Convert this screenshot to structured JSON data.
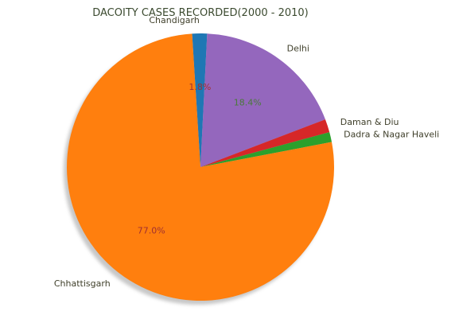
{
  "chart_data": {
    "type": "pie",
    "title": "DACOITY CASES RECORDED(2000 - 2010)",
    "slices": [
      {
        "label": "Chandigarh",
        "value": 1.8,
        "pct_label": "1.8%",
        "color": "#1f77b4",
        "pct_color": "#a03030"
      },
      {
        "label": "Delhi",
        "value": 18.4,
        "pct_label": "18.4%",
        "color": "#9467bd",
        "pct_color": "#4a7a3a"
      },
      {
        "label": "Daman & Diu",
        "value": 1.6,
        "pct_label": "",
        "color": "#d62728",
        "pct_color": "#4a7a3a"
      },
      {
        "label": "Dadra & Nagar Haveli",
        "value": 1.2,
        "pct_label": "",
        "color": "#2ca02c",
        "pct_color": "#4a7a3a"
      },
      {
        "label": "Chhattisgarh",
        "value": 77.0,
        "pct_label": "77.0%",
        "color": "#ff7f0e",
        "pct_color": "#a03030"
      }
    ],
    "start_angle_deg": 93.6,
    "direction": "clockwise",
    "shadow": true,
    "legend": "none"
  }
}
